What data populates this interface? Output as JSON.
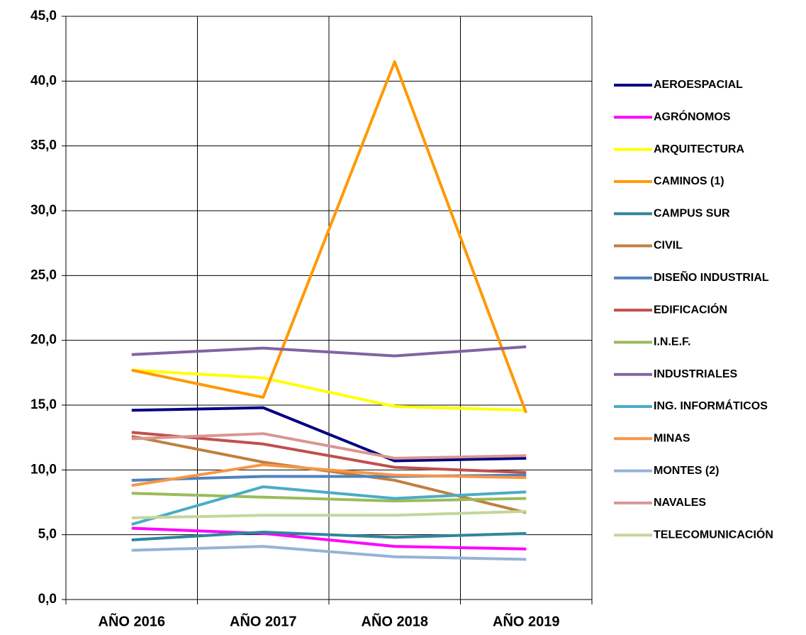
{
  "chart_data": {
    "type": "line",
    "categories": [
      "AÑO 2016",
      "AÑO 2017",
      "AÑO 2018",
      "AÑO 2019"
    ],
    "ylim": [
      0,
      45
    ],
    "yticks": [
      {
        "value": 0,
        "label": "0,0"
      },
      {
        "value": 5,
        "label": "5,0"
      },
      {
        "value": 10,
        "label": "10,0"
      },
      {
        "value": 15,
        "label": "15,0"
      },
      {
        "value": 20,
        "label": "20,0"
      },
      {
        "value": 25,
        "label": "25,0"
      },
      {
        "value": 30,
        "label": "30,0"
      },
      {
        "value": 35,
        "label": "35,0"
      },
      {
        "value": 40,
        "label": "40,0"
      },
      {
        "value": 45,
        "label": "45,0"
      }
    ],
    "grid": true,
    "legend": "right",
    "series": [
      {
        "name": "AEROESPACIAL",
        "color": "#000080",
        "values": [
          14.6,
          14.8,
          10.7,
          10.9
        ]
      },
      {
        "name": "AGRÓNOMOS",
        "color": "#FF00FF",
        "values": [
          5.5,
          5.1,
          4.1,
          3.9
        ]
      },
      {
        "name": "ARQUITECTURA",
        "color": "#FFFF00",
        "values": [
          17.7,
          17.1,
          14.9,
          14.6
        ]
      },
      {
        "name": "CAMINOS (1)",
        "color": "#FF9900",
        "values": [
          17.7,
          15.6,
          41.5,
          14.4
        ]
      },
      {
        "name": "CAMPUS SUR",
        "color": "#31859C",
        "values": [
          4.6,
          5.2,
          4.8,
          5.1
        ]
      },
      {
        "name": "CIVIL",
        "color": "#C0803F",
        "values": [
          12.6,
          10.6,
          9.2,
          6.7
        ]
      },
      {
        "name": "DISEÑO INDUSTRIAL",
        "color": "#4F81BD",
        "values": [
          9.2,
          9.5,
          9.5,
          9.6
        ]
      },
      {
        "name": "EDIFICACIÓN",
        "color": "#C0504D",
        "values": [
          12.9,
          12.0,
          10.2,
          9.8
        ]
      },
      {
        "name": "I.N.E.F.",
        "color": "#9BBB59",
        "values": [
          8.2,
          7.9,
          7.6,
          7.8
        ]
      },
      {
        "name": "INDUSTRIALES",
        "color": "#8064A2",
        "values": [
          18.9,
          19.4,
          18.8,
          19.5
        ]
      },
      {
        "name": "ING. INFORMÁTICOS",
        "color": "#4BACC6",
        "values": [
          5.8,
          8.7,
          7.8,
          8.3
        ]
      },
      {
        "name": "MINAS",
        "color": "#F79646",
        "values": [
          8.8,
          10.4,
          9.6,
          9.4
        ]
      },
      {
        "name": "MONTES (2)",
        "color": "#95B3D7",
        "values": [
          3.8,
          4.1,
          3.3,
          3.1
        ]
      },
      {
        "name": "NAVALES",
        "color": "#D99694",
        "values": [
          12.4,
          12.8,
          10.9,
          11.1
        ]
      },
      {
        "name": "TELECOMUNICACIÓN",
        "color": "#C3D69B",
        "values": [
          6.3,
          6.5,
          6.5,
          6.8
        ]
      }
    ]
  }
}
